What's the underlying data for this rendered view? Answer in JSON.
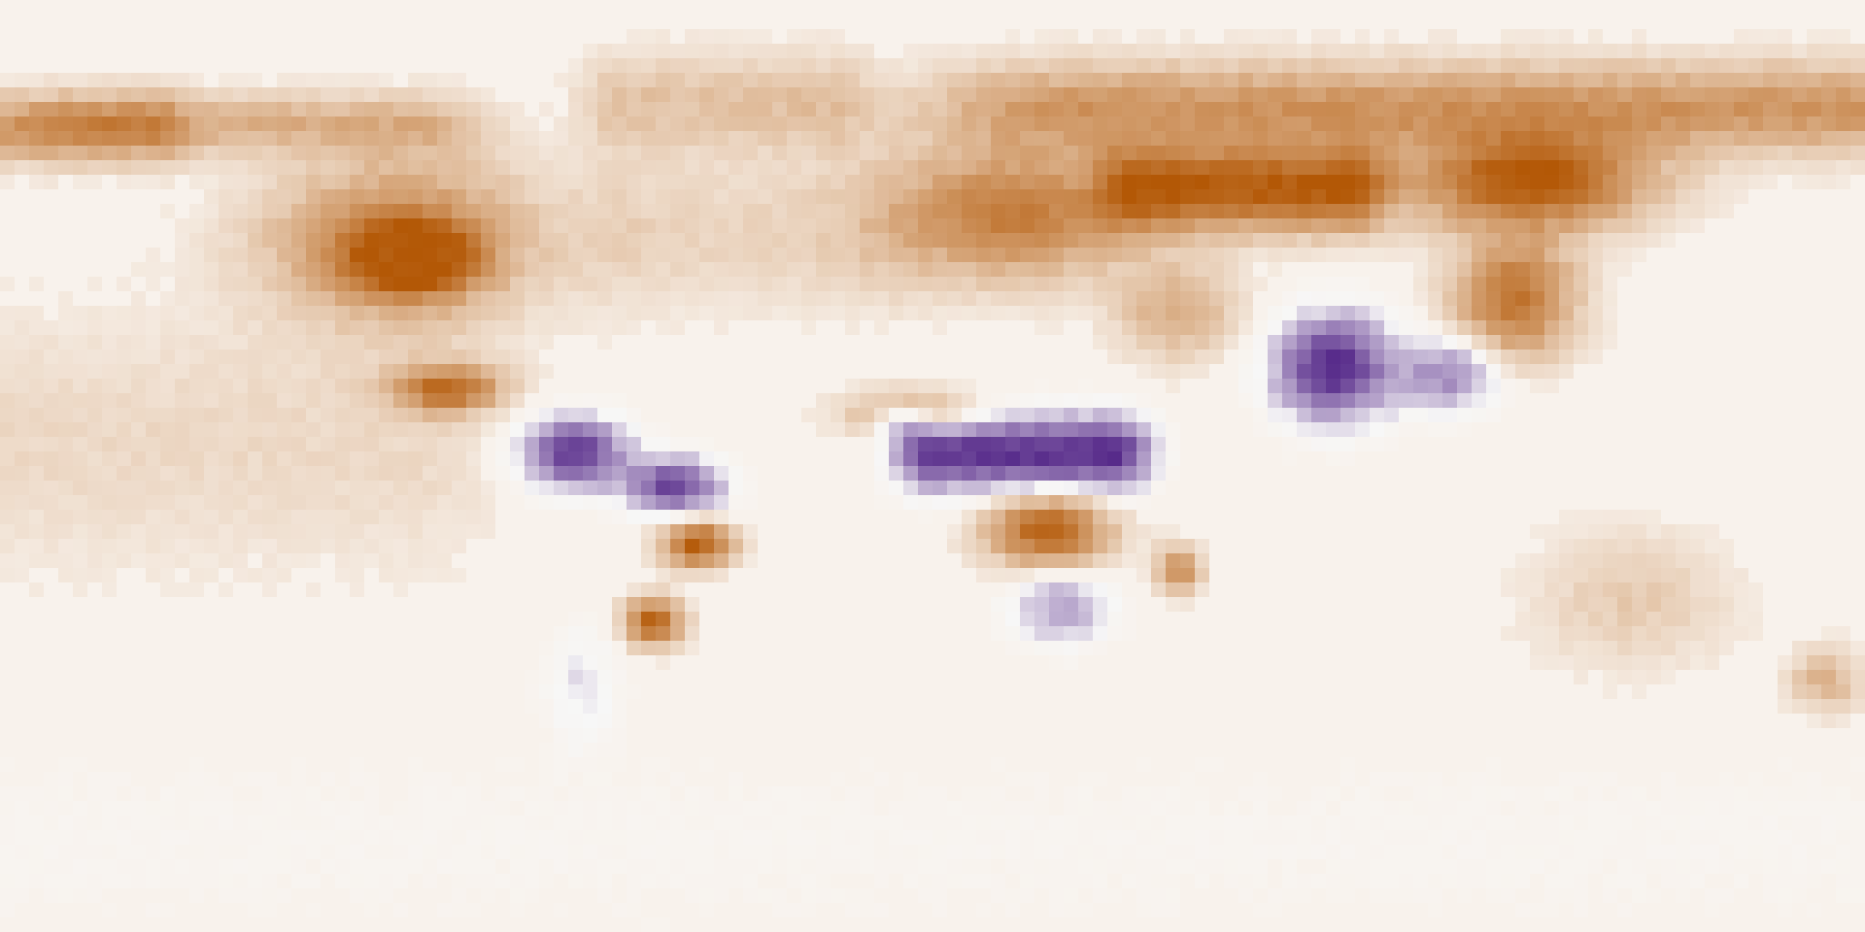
{
  "map": {
    "type": "equirectangular-gridded-field",
    "projection": "equirectangular",
    "extent": {
      "lon": [
        -180,
        180
      ],
      "lat": [
        -90,
        90
      ]
    },
    "colormap": {
      "name": "PuOr",
      "negative_color": "#542788",
      "neutral_color": "#f7f7f7",
      "positive_color": "#b35806",
      "background_color": "#f8f2ec"
    },
    "has_axes": false,
    "has_legend": false,
    "has_title": false,
    "features": [
      {
        "name": "western-north-america-positive",
        "lon": [
          -130,
          -75
        ],
        "lat": [
          27,
          60
        ],
        "sign": "positive",
        "strength": 0.7,
        "kind": "blob",
        "orientation": "positive-core"
      },
      {
        "name": "great-plains-positive-core",
        "lon": [
          -113,
          -88
        ],
        "lat": [
          33,
          47
        ],
        "sign": "positive",
        "strength": 0.95,
        "kind": "blob"
      },
      {
        "name": "arctic-north-america-positive",
        "lon": [
          -165,
          -100
        ],
        "lat": [
          60,
          72
        ],
        "sign": "positive",
        "strength": 0.35,
        "kind": "band"
      },
      {
        "name": "central-america-positive",
        "lon": [
          -105,
          -82
        ],
        "lat": [
          10,
          20
        ],
        "sign": "positive",
        "strength": 0.8,
        "kind": "blob"
      },
      {
        "name": "northern-south-america-negative",
        "lon": [
          -80,
          -58
        ],
        "lat": [
          -5,
          10
        ],
        "sign": "negative",
        "strength": 0.9,
        "kind": "blob"
      },
      {
        "name": "amazon-negative",
        "lon": [
          -60,
          -40
        ],
        "lat": [
          -10,
          2
        ],
        "sign": "negative",
        "strength": 0.85,
        "kind": "blob"
      },
      {
        "name": "brazil-positive-core",
        "lon": [
          -53,
          -38
        ],
        "lat": [
          -20,
          -10
        ],
        "sign": "positive",
        "strength": 0.95,
        "kind": "blob"
      },
      {
        "name": "southern-brazil-positive",
        "lon": [
          -60,
          -48
        ],
        "lat": [
          -35,
          -25
        ],
        "sign": "positive",
        "strength": 0.95,
        "kind": "blob"
      },
      {
        "name": "patagonia-neutral",
        "lon": [
          -75,
          -60
        ],
        "lat": [
          -55,
          -30
        ],
        "sign": "negative",
        "strength": 0.2,
        "kind": "blob"
      },
      {
        "name": "west-africa-positive",
        "lon": [
          -17,
          10
        ],
        "lat": [
          5,
          15
        ],
        "sign": "positive",
        "strength": 0.55,
        "kind": "blob"
      },
      {
        "name": "sahel-negative",
        "lon": [
          -12,
          0
        ],
        "lat": [
          5,
          12
        ],
        "sign": "negative",
        "strength": 0.55,
        "kind": "blob"
      },
      {
        "name": "central-africa-negative",
        "lon": [
          0,
          35
        ],
        "lat": [
          -5,
          10
        ],
        "sign": "negative",
        "strength": 0.95,
        "kind": "band"
      },
      {
        "name": "southern-africa-positive",
        "lon": [
          10,
          35
        ],
        "lat": [
          -20,
          -5
        ],
        "sign": "positive",
        "strength": 0.95,
        "kind": "blob"
      },
      {
        "name": "south-africa-mixed",
        "lon": [
          15,
          35
        ],
        "lat": [
          -35,
          -20
        ],
        "sign": "negative",
        "strength": 0.45,
        "kind": "blob"
      },
      {
        "name": "madagascar-positive",
        "lon": [
          43,
          52
        ],
        "lat": [
          -25,
          -15
        ],
        "sign": "positive",
        "strength": 0.65,
        "kind": "blob"
      },
      {
        "name": "europe-positive",
        "lon": [
          -10,
          40
        ],
        "lat": [
          35,
          62
        ],
        "sign": "positive",
        "strength": 0.75,
        "kind": "blob"
      },
      {
        "name": "eastern-europe-positive-core",
        "lon": [
          40,
          80
        ],
        "lat": [
          45,
          62
        ],
        "sign": "positive",
        "strength": 0.95,
        "kind": "band"
      },
      {
        "name": "siberia-positive-core",
        "lon": [
          90,
          140
        ],
        "lat": [
          45,
          65
        ],
        "sign": "positive",
        "strength": 1.0,
        "kind": "blob"
      },
      {
        "name": "arctic-eurasia-positive",
        "lon": [
          30,
          180
        ],
        "lat": [
          60,
          78
        ],
        "sign": "positive",
        "strength": 0.55,
        "kind": "band"
      },
      {
        "name": "east-asia-positive",
        "lon": [
          100,
          125
        ],
        "lat": [
          20,
          45
        ],
        "sign": "positive",
        "strength": 0.8,
        "kind": "blob"
      },
      {
        "name": "india-negative",
        "lon": [
          65,
          90
        ],
        "lat": [
          8,
          30
        ],
        "sign": "negative",
        "strength": 1.0,
        "kind": "blob"
      },
      {
        "name": "southeast-asia-negative",
        "lon": [
          90,
          110
        ],
        "lat": [
          10,
          25
        ],
        "sign": "negative",
        "strength": 0.55,
        "kind": "blob"
      },
      {
        "name": "middle-east-mixed",
        "lon": [
          35,
          60
        ],
        "lat": [
          20,
          40
        ],
        "sign": "positive",
        "strength": 0.4,
        "kind": "blob"
      },
      {
        "name": "australia-neutral",
        "lon": [
          115,
          155
        ],
        "lat": [
          -40,
          -12
        ],
        "sign": "positive",
        "strength": 0.2,
        "kind": "blob"
      },
      {
        "name": "new-zealand-positive",
        "lon": [
          165,
          180
        ],
        "lat": [
          -48,
          -35
        ],
        "sign": "positive",
        "strength": 0.35,
        "kind": "blob"
      },
      {
        "name": "southern-ocean-neutral",
        "lon": [
          -180,
          180
        ],
        "lat": [
          -90,
          -55
        ],
        "sign": "negative",
        "strength": 0.05,
        "kind": "band"
      },
      {
        "name": "tropical-pacific-faint",
        "lon": [
          -180,
          -100
        ],
        "lat": [
          -20,
          30
        ],
        "sign": "positive",
        "strength": 0.12,
        "kind": "band"
      },
      {
        "name": "north-atlantic-faint",
        "lon": [
          -60,
          -10
        ],
        "lat": [
          30,
          60
        ],
        "sign": "positive",
        "strength": 0.15,
        "kind": "band"
      },
      {
        "name": "greenland-faint",
        "lon": [
          -60,
          -20
        ],
        "lat": [
          60,
          80
        ],
        "sign": "positive",
        "strength": 0.25,
        "kind": "band"
      },
      {
        "name": "west-alaska-positive",
        "lon": [
          -180,
          -150
        ],
        "lat": [
          58,
          72
        ],
        "sign": "positive",
        "strength": 0.4,
        "kind": "band"
      }
    ]
  }
}
